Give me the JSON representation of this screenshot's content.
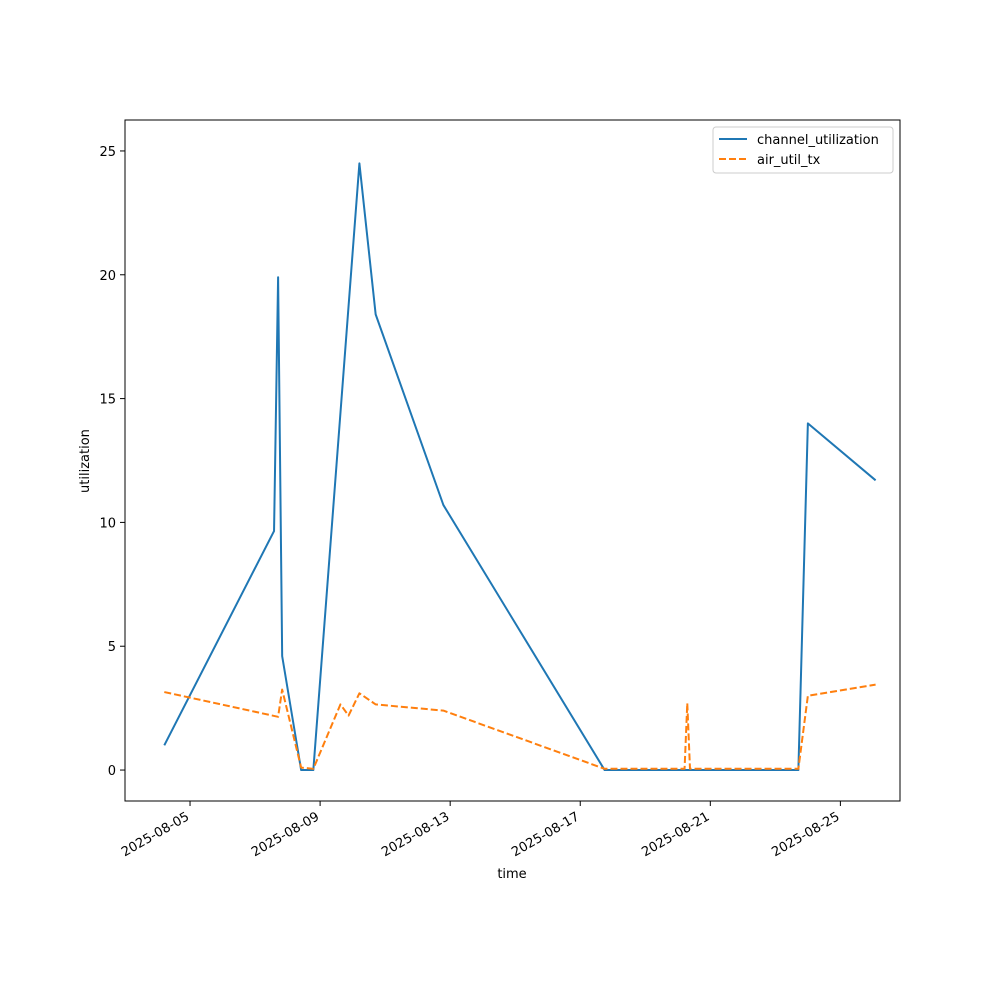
{
  "chart_data": {
    "type": "line",
    "xlabel": "time",
    "ylabel": "utilization",
    "xlim": [
      "2025-08-03T00:00",
      "2025-08-26T20:00"
    ],
    "ylim": [
      -1.25,
      26.25
    ],
    "x_ticks": [
      "2025-08-05",
      "2025-08-09",
      "2025-08-13",
      "2025-08-17",
      "2025-08-21",
      "2025-08-25"
    ],
    "y_ticks": [
      0,
      5,
      10,
      15,
      20,
      25
    ],
    "grid": false,
    "legend_position": "top-right",
    "series": [
      {
        "name": "channel_utilization",
        "color": "#1f77b4",
        "style": "solid",
        "points": [
          [
            "2025-08-04T05:00",
            1.0
          ],
          [
            "2025-08-07T14:00",
            9.65
          ],
          [
            "2025-08-07T17:00",
            19.9
          ],
          [
            "2025-08-07T20:00",
            4.6
          ],
          [
            "2025-08-08T10:00",
            0.0
          ],
          [
            "2025-08-08T19:00",
            0.0
          ],
          [
            "2025-08-10T05:00",
            24.5
          ],
          [
            "2025-08-10T17:00",
            18.4
          ],
          [
            "2025-08-12T19:00",
            10.7
          ],
          [
            "2025-08-17T18:00",
            0.0
          ],
          [
            "2025-08-23T17:00",
            0.0
          ],
          [
            "2025-08-24T00:00",
            14.0
          ],
          [
            "2025-08-26T02:00",
            11.7
          ]
        ]
      },
      {
        "name": "air_util_tx",
        "color": "#ff7f0e",
        "style": "dashed",
        "points": [
          [
            "2025-08-04T05:00",
            3.15
          ],
          [
            "2025-08-07T17:00",
            2.15
          ],
          [
            "2025-08-07T20:00",
            3.25
          ],
          [
            "2025-08-08T10:00",
            0.1
          ],
          [
            "2025-08-08T19:00",
            0.05
          ],
          [
            "2025-08-09T15:00",
            2.65
          ],
          [
            "2025-08-09T21:00",
            2.2
          ],
          [
            "2025-08-10T05:00",
            3.1
          ],
          [
            "2025-08-10T17:00",
            2.65
          ],
          [
            "2025-08-12T19:00",
            2.4
          ],
          [
            "2025-08-17T18:00",
            0.05
          ],
          [
            "2025-08-20T05:00",
            0.05
          ],
          [
            "2025-08-20T07:00",
            2.7
          ],
          [
            "2025-08-20T09:00",
            0.05
          ],
          [
            "2025-08-23T17:00",
            0.05
          ],
          [
            "2025-08-24T00:00",
            3.0
          ],
          [
            "2025-08-26T02:00",
            3.45
          ]
        ]
      }
    ]
  }
}
